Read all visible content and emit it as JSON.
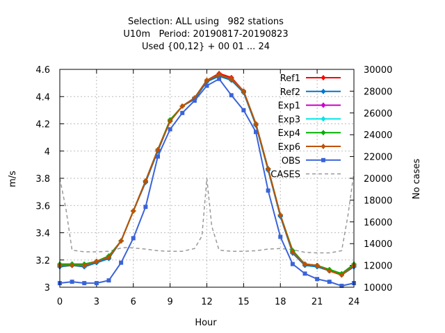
{
  "chart_data": {
    "type": "line",
    "title_lines": [
      "Selection: ALL using   982 stations",
      "U10m   Period: 20190817-20190823",
      "Used {00,12} + 00 01 ... 24"
    ],
    "xlabel": "Hour",
    "ylabel": "m/s",
    "y2label": "No cases",
    "xlim": [
      0,
      24
    ],
    "ylim": [
      3,
      4.6
    ],
    "y2lim": [
      10000,
      30000
    ],
    "x_ticks": [
      0,
      3,
      6,
      9,
      12,
      15,
      18,
      21,
      24
    ],
    "y_ticks": [
      3,
      3.2,
      3.4,
      3.6,
      3.8,
      4,
      4.2,
      4.4,
      4.6
    ],
    "y2_ticks": [
      10000,
      12000,
      14000,
      16000,
      18000,
      20000,
      22000,
      24000,
      26000,
      28000,
      30000
    ],
    "grid": true,
    "legend_position": "top-right",
    "x": [
      0,
      1,
      2,
      3,
      4,
      5,
      6,
      7,
      8,
      9,
      10,
      11,
      12,
      13,
      14,
      15,
      16,
      17,
      18,
      19,
      20,
      21,
      22,
      23,
      24
    ],
    "series": [
      {
        "name": "Ref1",
        "color": "#ff0000",
        "marker": "plus",
        "values": [
          3.16,
          3.16,
          3.16,
          3.19,
          3.22,
          3.34,
          3.56,
          3.78,
          4.01,
          4.22,
          4.33,
          4.39,
          4.52,
          4.57,
          4.54,
          4.44,
          4.2,
          3.87,
          3.53,
          3.26,
          3.17,
          3.16,
          3.12,
          3.09,
          3.16
        ]
      },
      {
        "name": "Ref2",
        "color": "#0077cc",
        "marker": "plus",
        "values": [
          3.15,
          3.16,
          3.15,
          3.18,
          3.21,
          3.34,
          3.56,
          3.77,
          4.0,
          4.22,
          4.33,
          4.38,
          4.51,
          4.55,
          4.52,
          4.43,
          4.19,
          3.86,
          3.52,
          3.25,
          3.16,
          3.15,
          3.12,
          3.09,
          3.15
        ]
      },
      {
        "name": "Exp1",
        "color": "#cc00cc",
        "marker": "plus",
        "values": [
          3.16,
          3.17,
          3.16,
          3.19,
          3.22,
          3.34,
          3.56,
          3.78,
          4.01,
          4.22,
          4.33,
          4.39,
          4.52,
          4.56,
          4.53,
          4.44,
          4.2,
          3.87,
          3.53,
          3.26,
          3.17,
          3.16,
          3.12,
          3.09,
          3.16
        ]
      },
      {
        "name": "Exp3",
        "color": "#00e5e5",
        "marker": "plus",
        "values": [
          3.16,
          3.16,
          3.16,
          3.19,
          3.22,
          3.34,
          3.56,
          3.78,
          4.01,
          4.22,
          4.33,
          4.39,
          4.52,
          4.56,
          4.53,
          4.44,
          4.2,
          3.87,
          3.53,
          3.26,
          3.17,
          3.16,
          3.12,
          3.09,
          3.16
        ]
      },
      {
        "name": "Exp4",
        "color": "#00b000",
        "marker": "plus",
        "values": [
          3.17,
          3.17,
          3.17,
          3.19,
          3.23,
          3.34,
          3.56,
          3.78,
          4.01,
          4.23,
          4.33,
          4.39,
          4.52,
          4.56,
          4.53,
          4.44,
          4.2,
          3.87,
          3.53,
          3.27,
          3.17,
          3.16,
          3.13,
          3.1,
          3.17
        ]
      },
      {
        "name": "Exp6",
        "color": "#c05000",
        "marker": "plus",
        "values": [
          3.16,
          3.16,
          3.16,
          3.19,
          3.22,
          3.34,
          3.56,
          3.78,
          4.01,
          4.22,
          4.33,
          4.39,
          4.52,
          4.56,
          4.53,
          4.44,
          4.2,
          3.87,
          3.53,
          3.26,
          3.17,
          3.16,
          3.12,
          3.09,
          3.16
        ]
      },
      {
        "name": "OBS",
        "color": "#3a63d8",
        "marker": "square",
        "values": [
          3.03,
          3.04,
          3.03,
          3.03,
          3.05,
          3.18,
          3.36,
          3.59,
          3.96,
          4.16,
          4.28,
          4.37,
          4.48,
          4.53,
          4.41,
          4.3,
          4.14,
          3.71,
          3.37,
          3.17,
          3.1,
          3.06,
          3.04,
          3.01,
          3.03
        ]
      }
    ],
    "cases": {
      "name": "CASES",
      "color": "#999999",
      "style": "dashed",
      "axis": "y2",
      "x": [
        0,
        0.5,
        1,
        2,
        3,
        4,
        5,
        5.5,
        6,
        7,
        8,
        9,
        10,
        11,
        11.6,
        12,
        12.4,
        13,
        14,
        15,
        16,
        17,
        18,
        19,
        20,
        21,
        22,
        23,
        23.5,
        24
      ],
      "values": [
        20000,
        17200,
        13400,
        13250,
        13250,
        13300,
        13600,
        13650,
        13600,
        13500,
        13350,
        13300,
        13300,
        13550,
        14700,
        20000,
        15600,
        13400,
        13300,
        13300,
        13350,
        13500,
        13550,
        13450,
        13200,
        13150,
        13150,
        13350,
        16500,
        20500
      ]
    }
  }
}
